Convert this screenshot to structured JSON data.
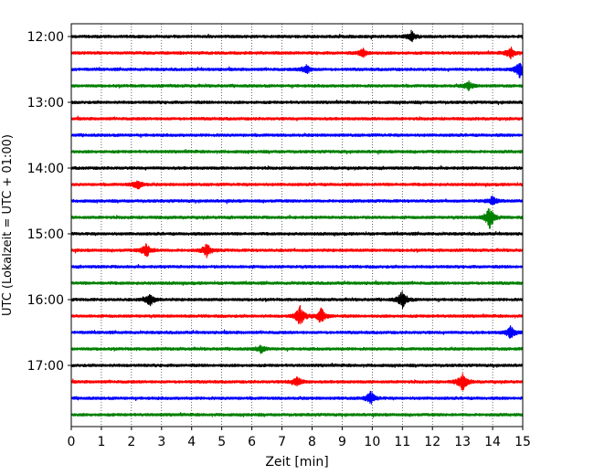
{
  "chart_data": {
    "type": "line",
    "xlabel": "Zeit  [min]",
    "ylabel": "UTC (Lokalzeit = UTC + 01:00)",
    "xlim": [
      0,
      15
    ],
    "x_ticks": [
      "0",
      "1",
      "2",
      "3",
      "4",
      "5",
      "6",
      "7",
      "8",
      "9",
      "10",
      "11",
      "12",
      "13",
      "14",
      "15"
    ],
    "y_tick_labels": [
      "12:00",
      "13:00",
      "14:00",
      "15:00",
      "16:00",
      "17:00"
    ],
    "grid": "vertical dotted at each minute",
    "trace_colors": [
      "#000000",
      "#ff0000",
      "#0000ff",
      "#008000"
    ],
    "traces": [
      {
        "start": "12:00",
        "color": "#000000",
        "events": [
          {
            "t": 11.3,
            "amp": 0.35
          }
        ]
      },
      {
        "start": "12:15",
        "color": "#ff0000",
        "events": [
          {
            "t": 9.7,
            "amp": 0.3
          },
          {
            "t": 14.6,
            "amp": 0.4
          }
        ]
      },
      {
        "start": "12:30",
        "color": "#0000ff",
        "events": [
          {
            "t": 7.8,
            "amp": 0.35
          },
          {
            "t": 14.9,
            "amp": 0.6
          }
        ]
      },
      {
        "start": "12:45",
        "color": "#008000",
        "events": [
          {
            "t": 13.2,
            "amp": 0.3
          }
        ]
      },
      {
        "start": "13:00",
        "color": "#000000",
        "events": []
      },
      {
        "start": "13:15",
        "color": "#ff0000",
        "events": []
      },
      {
        "start": "13:30",
        "color": "#0000ff",
        "events": []
      },
      {
        "start": "13:45",
        "color": "#008000",
        "events": []
      },
      {
        "start": "14:00",
        "color": "#000000",
        "events": []
      },
      {
        "start": "14:15",
        "color": "#ff0000",
        "events": [
          {
            "t": 2.2,
            "amp": 0.35
          }
        ]
      },
      {
        "start": "14:30",
        "color": "#0000ff",
        "events": [
          {
            "t": 14.0,
            "amp": 0.3
          }
        ]
      },
      {
        "start": "14:45",
        "color": "#008000",
        "events": [
          {
            "t": 13.9,
            "amp": 0.8
          }
        ]
      },
      {
        "start": "15:00",
        "color": "#000000",
        "events": []
      },
      {
        "start": "15:15",
        "color": "#ff0000",
        "events": [
          {
            "t": 2.5,
            "amp": 0.5
          },
          {
            "t": 4.5,
            "amp": 0.45
          }
        ]
      },
      {
        "start": "15:30",
        "color": "#0000ff",
        "events": []
      },
      {
        "start": "15:45",
        "color": "#008000",
        "events": []
      },
      {
        "start": "16:00",
        "color": "#000000",
        "events": [
          {
            "t": 2.6,
            "amp": 0.45
          },
          {
            "t": 11.0,
            "amp": 0.6
          }
        ]
      },
      {
        "start": "16:15",
        "color": "#ff0000",
        "events": [
          {
            "t": 7.6,
            "amp": 0.7
          },
          {
            "t": 8.3,
            "amp": 0.55
          }
        ]
      },
      {
        "start": "16:30",
        "color": "#0000ff",
        "events": [
          {
            "t": 14.6,
            "amp": 0.45
          }
        ]
      },
      {
        "start": "16:45",
        "color": "#008000",
        "events": [
          {
            "t": 6.3,
            "amp": 0.25
          }
        ]
      },
      {
        "start": "17:00",
        "color": "#000000",
        "events": []
      },
      {
        "start": "17:15",
        "color": "#ff0000",
        "events": [
          {
            "t": 7.5,
            "amp": 0.35
          },
          {
            "t": 13.0,
            "amp": 0.65
          }
        ]
      },
      {
        "start": "17:30",
        "color": "#0000ff",
        "events": [
          {
            "t": 9.95,
            "amp": 0.45
          }
        ]
      },
      {
        "start": "17:45",
        "color": "#008000",
        "events": []
      }
    ]
  }
}
